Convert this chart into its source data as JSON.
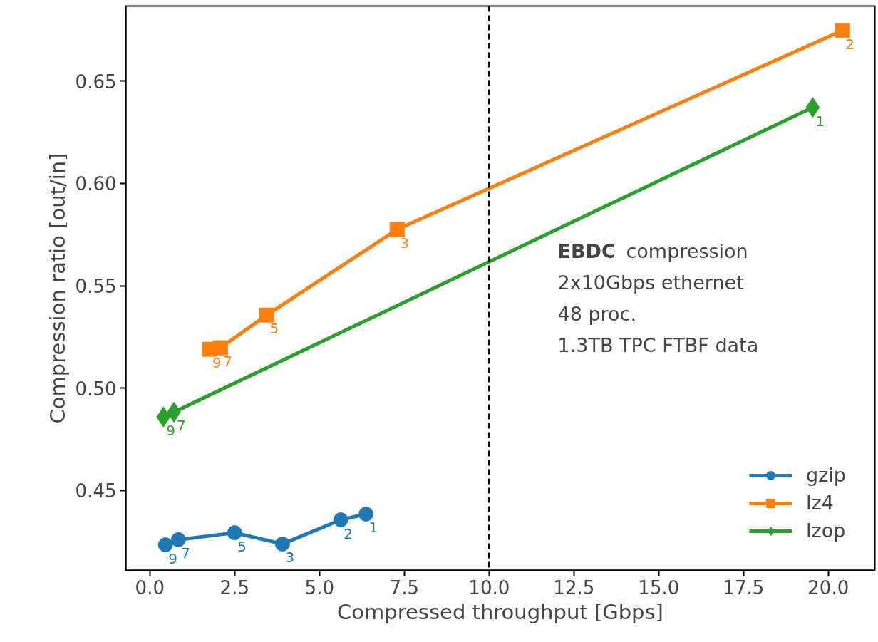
{
  "chart_data": {
    "type": "line",
    "xlabel": "Compressed throughput [Gbps]",
    "ylabel": "Compression ratio [out/in]",
    "xlim": [
      -0.71,
      21.37
    ],
    "ylim": [
      0.411,
      0.6866
    ],
    "xticks": [
      {
        "value": 0,
        "label": "0.0"
      },
      {
        "value": 2.5,
        "label": "2.5"
      },
      {
        "value": 5,
        "label": "5.0"
      },
      {
        "value": 7.5,
        "label": "7.5"
      },
      {
        "value": 10,
        "label": "10.0"
      },
      {
        "value": 12.5,
        "label": "12.5"
      },
      {
        "value": 15,
        "label": "15.0"
      },
      {
        "value": 17.5,
        "label": "17.5"
      },
      {
        "value": 20,
        "label": "20.0"
      }
    ],
    "yticks": [
      {
        "value": 0.45,
        "label": "0.45"
      },
      {
        "value": 0.5,
        "label": "0.50"
      },
      {
        "value": 0.55,
        "label": "0.55"
      },
      {
        "value": 0.6,
        "label": "0.60"
      },
      {
        "value": 0.65,
        "label": "0.65"
      }
    ],
    "series": [
      {
        "name": "gzip",
        "color": "#1f77b4",
        "marker": "circle",
        "x": [
          0.46,
          0.84,
          2.5,
          3.91,
          5.63,
          6.37
        ],
        "values": [
          0.4235,
          0.426,
          0.4294,
          0.4239,
          0.4357,
          0.4385
        ]
      },
      {
        "name": "lz4",
        "color": "#ff7f0e",
        "marker": "square",
        "x": [
          1.76,
          2.08,
          3.45,
          7.29,
          20.42
        ],
        "values": [
          0.519,
          0.5197,
          0.5357,
          0.5775,
          0.6747
        ]
      },
      {
        "name": "lzop",
        "color": "#2ca02c",
        "marker": "diamond",
        "x": [
          0.4,
          0.71,
          19.54
        ],
        "values": [
          0.4859,
          0.4883,
          0.6371
        ]
      }
    ],
    "ref_lines": [
      {
        "axis": "x",
        "value": 10,
        "color": "#000000",
        "line_style": "dashed"
      }
    ],
    "legend": "bottom right",
    "grid": false,
    "annotations": [
      "EBDC compression",
      "2x10Gbps ethernet",
      "48 proc.",
      "1.3TB TPC FTBF data",
      {
        "text": "9",
        "x": 0.46,
        "y": 0.4235
      },
      {
        "text": "7",
        "x": 0.84,
        "y": 0.426
      },
      {
        "text": "5",
        "x": 2.5,
        "y": 0.4294
      },
      {
        "text": "3",
        "x": 3.91,
        "y": 0.4239
      },
      {
        "text": "2",
        "x": 5.63,
        "y": 0.4357
      },
      {
        "text": "1",
        "x": 6.37,
        "y": 0.4385
      },
      {
        "text": "9",
        "x": 1.76,
        "y": 0.519
      },
      {
        "text": "7",
        "x": 2.08,
        "y": 0.5197
      },
      {
        "text": "5",
        "x": 3.45,
        "y": 0.5357
      },
      {
        "text": "3",
        "x": 7.29,
        "y": 0.5775
      },
      {
        "text": "2",
        "x": 20.42,
        "y": 0.6747
      },
      {
        "text": "9",
        "x": 0.4,
        "y": 0.4859
      },
      {
        "text": "7",
        "x": 0.71,
        "y": 0.4883
      },
      {
        "text": "1",
        "x": 19.54,
        "y": 0.6371
      }
    ]
  }
}
